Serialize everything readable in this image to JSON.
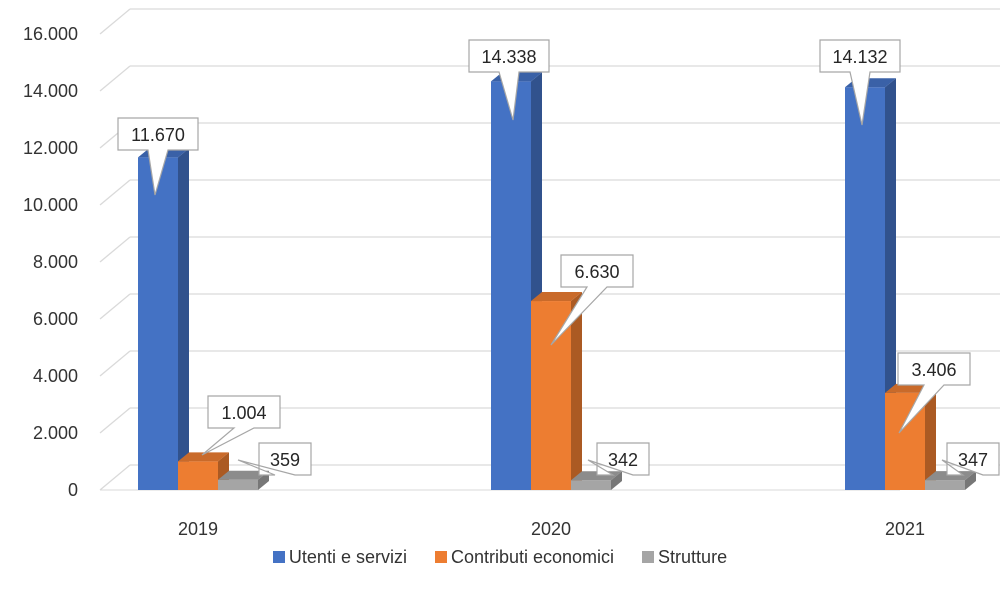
{
  "chart_data": {
    "type": "bar",
    "style": "3d-clustered-column",
    "categories": [
      "2019",
      "2020",
      "2021"
    ],
    "series": [
      {
        "name": "Utenti e servizi",
        "values": [
          11670,
          14338,
          14132
        ],
        "labels": [
          "11.670",
          "14.338",
          "14.132"
        ],
        "color": "#4472C4"
      },
      {
        "name": "Contributi economici",
        "values": [
          1004,
          6630,
          3406
        ],
        "labels": [
          "1.004",
          "6.630",
          "3.406"
        ],
        "color": "#ED7D31"
      },
      {
        "name": "Strutture",
        "values": [
          359,
          342,
          347
        ],
        "labels": [
          "359",
          "342",
          "347"
        ],
        "color": "#A5A5A5"
      }
    ],
    "y_ticks": [
      "0",
      "2.000",
      "4.000",
      "6.000",
      "8.000",
      "10.000",
      "12.000",
      "14.000",
      "16.000"
    ],
    "ylim": [
      0,
      16000
    ],
    "grid": true,
    "legend_position": "bottom"
  }
}
